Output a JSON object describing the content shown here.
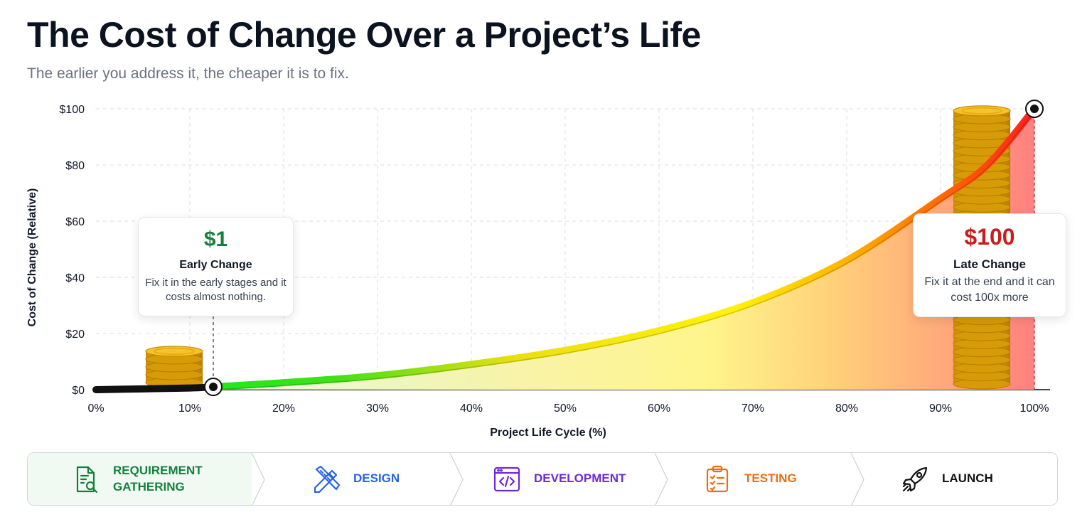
{
  "title": "The Cost of Change Over a Project’s Life",
  "subtitle": "The earlier you address it, the cheaper it is to fix.",
  "chart_data": {
    "type": "area",
    "xlabel": "Project Life Cycle (%)",
    "ylabel": "Cost of Change (Relative)",
    "xlim": [
      0,
      100
    ],
    "ylim": [
      0,
      100
    ],
    "x_ticks": [
      0,
      10,
      20,
      30,
      40,
      50,
      60,
      70,
      80,
      90,
      100
    ],
    "x_tick_labels": [
      "0%",
      "10%",
      "20%",
      "30%",
      "40%",
      "50%",
      "60%",
      "70%",
      "80%",
      "90%",
      "100%"
    ],
    "y_ticks": [
      0,
      20,
      40,
      60,
      80,
      100
    ],
    "y_tick_labels": [
      "$0",
      "$20",
      "$40",
      "$60",
      "$80",
      "$100"
    ],
    "grid": true,
    "series": [
      {
        "x": [
          0,
          5,
          10,
          12.5,
          20,
          30,
          40,
          50,
          60,
          70,
          80,
          90,
          95,
          100
        ],
        "y": [
          0,
          0.3,
          0.6,
          1,
          2.5,
          5,
          9,
          14,
          21,
          31,
          46,
          68,
          80,
          100
        ]
      }
    ],
    "markers": [
      {
        "x": 12.5,
        "y": 1
      },
      {
        "x": 100,
        "y": 100
      }
    ],
    "annotations": [
      {
        "id": "early",
        "x": 12.5,
        "cost": "$1",
        "title": "Early Change",
        "text": "Fix it in the early stages and it costs almost nothing.",
        "color": "#15803d"
      },
      {
        "id": "late",
        "x": 100,
        "cost": "$100",
        "title": "Late Change",
        "text": "Fix it at the end and it can cost 100x more",
        "color": "#c81e1e"
      }
    ]
  },
  "phases": [
    {
      "label": "REQUIREMENT\nGATHERING",
      "icon": "document-search-icon",
      "color": "#15803d",
      "bg": "#f1faf2"
    },
    {
      "label": "DESIGN",
      "icon": "ruler-pencil-icon",
      "color": "#2563eb",
      "bg": "#ffffff"
    },
    {
      "label": "DEVELOPMENT",
      "icon": "code-window-icon",
      "color": "#6d28d9",
      "bg": "#ffffff"
    },
    {
      "label": "TESTING",
      "icon": "clipboard-check-icon",
      "color": "#f26b0f",
      "bg": "#ffffff"
    },
    {
      "label": "LAUNCH",
      "icon": "rocket-icon",
      "color": "#111111",
      "bg": "#ffffff"
    }
  ]
}
